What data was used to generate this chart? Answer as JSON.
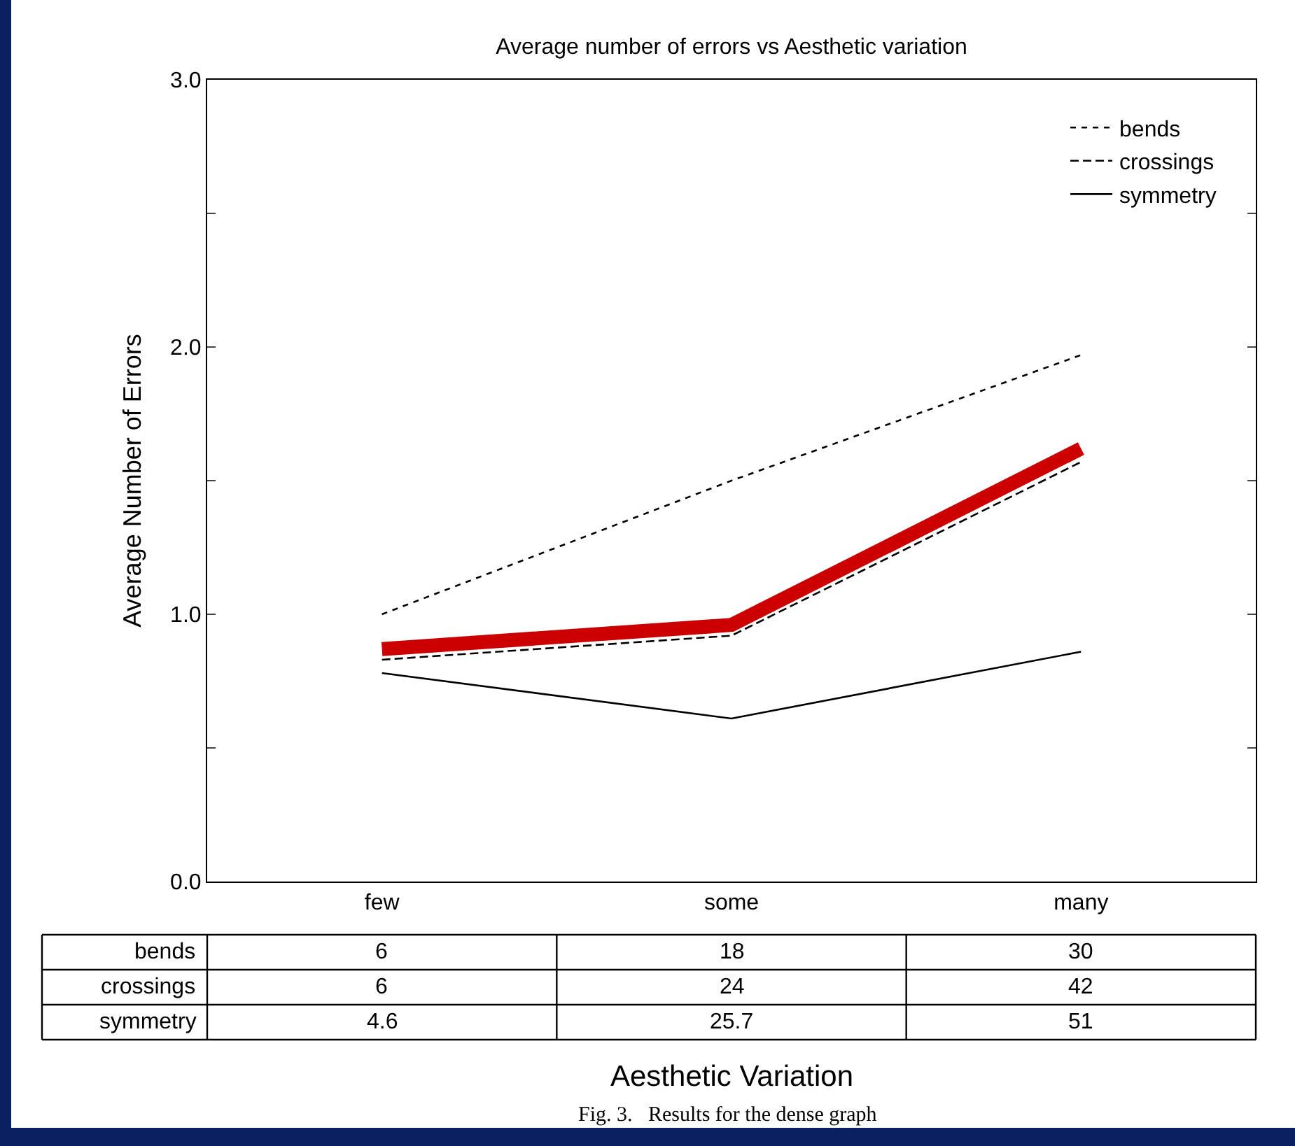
{
  "chart_data": {
    "type": "line",
    "title": "Average number of errors vs Aesthetic variation",
    "xlabel": "Aesthetic Variation",
    "ylabel": "Average Number of Errors",
    "categories": [
      "few",
      "some",
      "many"
    ],
    "series": [
      {
        "name": "bends",
        "color": "#000000",
        "line_style": "dotted",
        "values": [
          1.0,
          1.5,
          1.97
        ]
      },
      {
        "name": "crossings",
        "color": "#000000",
        "line_style": "dashed",
        "values": [
          0.83,
          0.92,
          1.57
        ]
      },
      {
        "name": "symmetry",
        "color": "#000000",
        "line_style": "solid",
        "values": [
          0.78,
          0.61,
          0.86
        ]
      },
      {
        "color": "#cc0000",
        "line_style": "solid",
        "values": [
          0.87,
          0.96,
          1.62
        ]
      }
    ],
    "ylim": [
      0,
      3
    ],
    "yticks": [
      {
        "value": 0,
        "label": "0.0"
      },
      {
        "value": 0.5,
        "label": null
      },
      {
        "value": 1,
        "label": "1.0"
      },
      {
        "value": 1.5,
        "label": null
      },
      {
        "value": 2,
        "label": "2.0"
      },
      {
        "value": 2.5,
        "label": null
      },
      {
        "value": 3,
        "label": "3.0"
      }
    ],
    "legend": "top right",
    "marker": "none",
    "annotations": [
      "bends",
      "6",
      "18",
      "30",
      "crossings",
      "6",
      "24",
      "42",
      "symmetry",
      "4.6",
      "25.7",
      "51",
      "Fig. 3.   Results for the dense graph"
    ]
  }
}
